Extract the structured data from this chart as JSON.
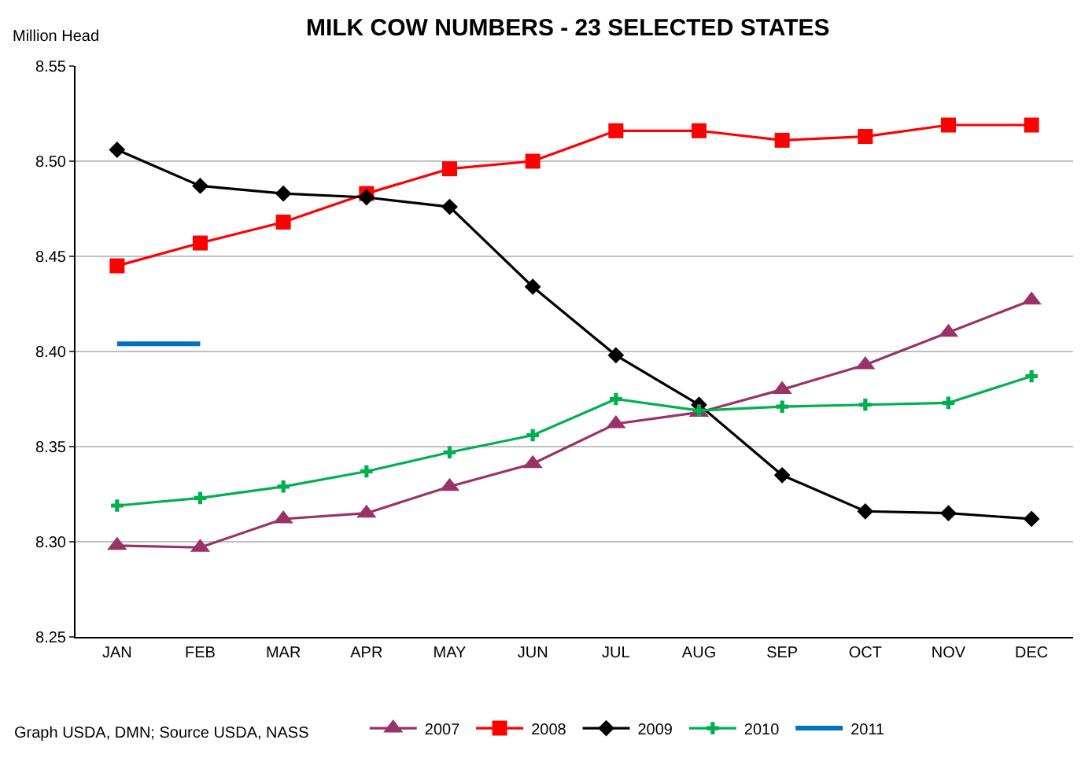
{
  "chart_data": {
    "type": "line",
    "title": "MILK COW NUMBERS - 23 SELECTED STATES",
    "ylabel": "Million Head",
    "categories": [
      "JAN",
      "FEB",
      "MAR",
      "APR",
      "MAY",
      "JUN",
      "JUL",
      "AUG",
      "SEP",
      "OCT",
      "NOV",
      "DEC"
    ],
    "series": [
      {
        "name": "2007",
        "color": "#993366",
        "marker": "triangle",
        "values": [
          8.298,
          8.297,
          8.312,
          8.315,
          8.329,
          8.341,
          8.362,
          8.368,
          8.38,
          8.393,
          8.41,
          8.427
        ]
      },
      {
        "name": "2008",
        "color": "#ff0000",
        "marker": "square",
        "values": [
          8.445,
          8.457,
          8.468,
          8.483,
          8.496,
          8.5,
          8.516,
          8.516,
          8.511,
          8.513,
          8.519,
          8.519
        ]
      },
      {
        "name": "2009",
        "color": "#000000",
        "marker": "diamond",
        "values": [
          8.506,
          8.487,
          8.483,
          8.481,
          8.476,
          8.434,
          8.398,
          8.372,
          8.335,
          8.316,
          8.315,
          8.312
        ]
      },
      {
        "name": "2010",
        "color": "#00b050",
        "marker": "cross",
        "values": [
          8.319,
          8.323,
          8.329,
          8.337,
          8.347,
          8.356,
          8.375,
          8.369,
          8.371,
          8.372,
          8.373,
          8.387
        ]
      },
      {
        "name": "2011",
        "color": "#0070c0",
        "marker": "none",
        "values": [
          8.404,
          8.404,
          null,
          null,
          null,
          null,
          null,
          null,
          null,
          null,
          null,
          null
        ]
      }
    ],
    "ylim": [
      8.25,
      8.55
    ],
    "yticks": [
      {
        "value": 8.25,
        "label": "8.25"
      },
      {
        "value": 8.3,
        "label": "8.30"
      },
      {
        "value": 8.35,
        "label": "8.35"
      },
      {
        "value": 8.4,
        "label": "8.40"
      },
      {
        "value": 8.45,
        "label": "8.45"
      },
      {
        "value": 8.5,
        "label": "8.50"
      },
      {
        "value": 8.55,
        "label": "8.55"
      }
    ],
    "grid": "y",
    "legend": "bottom",
    "line_style": "solid",
    "annotations": [
      "Graph USDA, DMN; Source USDA, NASS"
    ]
  }
}
